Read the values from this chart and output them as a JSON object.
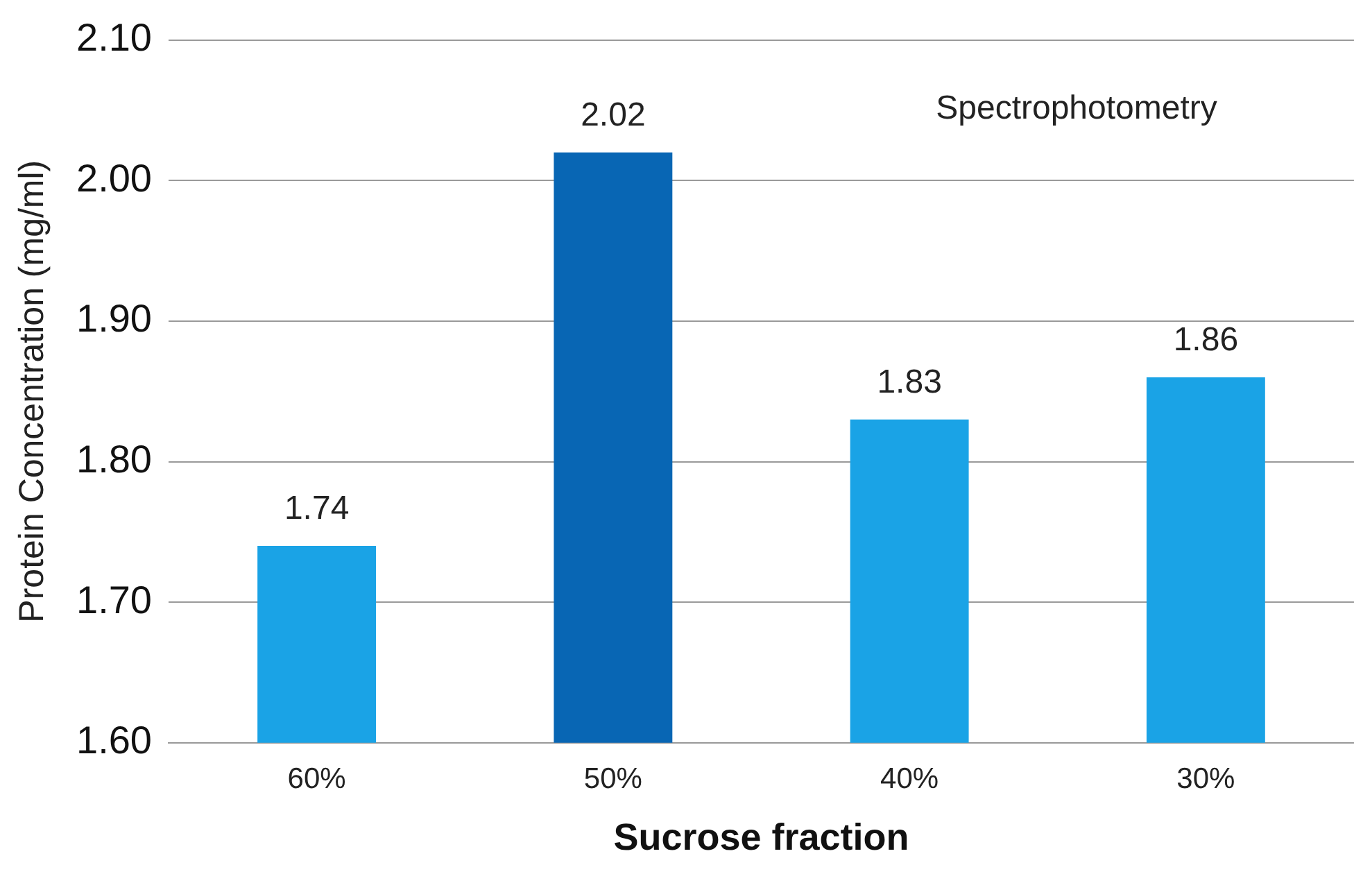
{
  "chart_data": {
    "type": "bar",
    "xlabel": "Sucrose fraction",
    "ylabel": "Protein Concentration (mg/ml)",
    "categories": [
      "60%",
      "50%",
      "40%",
      "30%"
    ],
    "values": [
      1.74,
      2.02,
      1.83,
      1.86
    ],
    "colors": [
      "#1aa3e6",
      "#0866b4",
      "#1aa3e6",
      "#1aa3e6"
    ],
    "ylim": [
      1.6,
      2.1
    ],
    "yticks": [
      {
        "value": 1.6,
        "label": "1.60"
      },
      {
        "value": 1.7,
        "label": "1.70"
      },
      {
        "value": 1.8,
        "label": "1.80"
      },
      {
        "value": 1.9,
        "label": "1.90"
      },
      {
        "value": 2.0,
        "label": "2.00"
      },
      {
        "value": 2.1,
        "label": "2.10"
      }
    ],
    "grid": "y",
    "legend": false,
    "data_labels": true,
    "annotations": [
      "Spectrophotometry"
    ]
  }
}
